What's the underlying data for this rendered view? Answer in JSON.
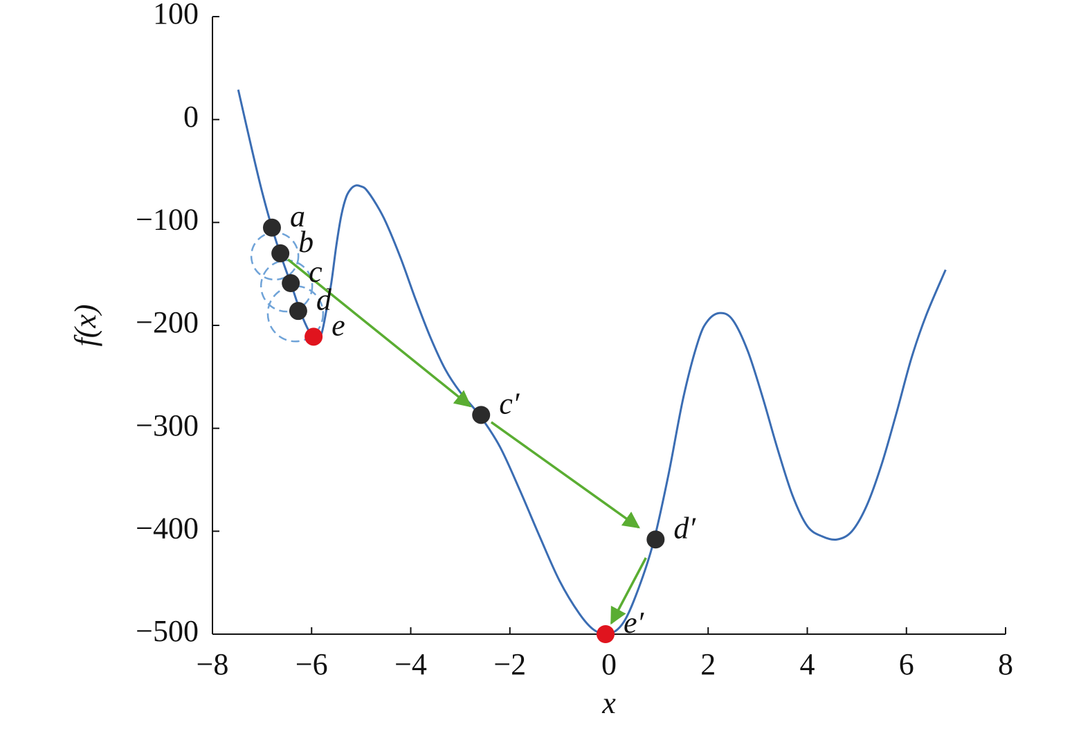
{
  "chart_data": {
    "type": "line",
    "x_label": "x",
    "y_label": "f(x)",
    "xlim": [
      -8,
      8
    ],
    "ylim": [
      -500,
      100
    ],
    "xticks": [
      {
        "value": -8,
        "label": "−8"
      },
      {
        "value": -6,
        "label": "−6"
      },
      {
        "value": -4,
        "label": "−4"
      },
      {
        "value": -2,
        "label": "−2"
      },
      0,
      2,
      4,
      6,
      8
    ],
    "yticks": [
      100,
      0,
      {
        "value": -100,
        "label": "−100"
      },
      {
        "value": -200,
        "label": "−200"
      },
      {
        "value": -300,
        "label": "−300"
      },
      {
        "value": -400,
        "label": "−400"
      },
      {
        "value": -500,
        "label": "−500"
      }
    ],
    "series": [
      {
        "color": "#3b6db3",
        "x": [
          -7.48,
          -7.2,
          -7.0,
          -6.8,
          -6.6,
          -6.4,
          -6.2,
          -6.0,
          -5.9,
          -5.8,
          -5.7,
          -5.6,
          -5.5,
          -5.4,
          -5.3,
          -5.2,
          -5.1,
          -5.0,
          -4.9,
          -4.7,
          -4.5,
          -4.2,
          -3.9,
          -3.6,
          -3.3,
          -3.0,
          -2.6,
          -2.2,
          -1.8,
          -1.4,
          -1.0,
          -0.6,
          -0.3,
          0.0,
          0.3,
          0.6,
          0.9,
          1.2,
          1.5,
          1.8,
          2.0,
          2.25,
          2.5,
          2.8,
          3.1,
          3.4,
          3.7,
          4.0,
          4.3,
          4.6,
          4.9,
          5.2,
          5.5,
          5.8,
          6.1,
          6.4,
          6.79
        ],
        "values": [
          29,
          -30,
          -70,
          -105,
          -135,
          -162,
          -190,
          -210,
          -213,
          -208,
          -185,
          -158,
          -122,
          -93,
          -75,
          -67,
          -64,
          -65,
          -68,
          -82,
          -100,
          -135,
          -175,
          -212,
          -243,
          -265,
          -288,
          -318,
          -360,
          -405,
          -448,
          -480,
          -496,
          -500,
          -488,
          -455,
          -410,
          -345,
          -270,
          -215,
          -195,
          -188,
          -195,
          -225,
          -270,
          -320,
          -365,
          -395,
          -405,
          -408,
          -400,
          -375,
          -335,
          -285,
          -232,
          -190,
          -146
        ]
      }
    ],
    "points": [
      {
        "label": "a",
        "x": -6.8,
        "y": -105,
        "color": "#2b2b2b"
      },
      {
        "label": "b",
        "x": -6.63,
        "y": -130,
        "color": "#2b2b2b"
      },
      {
        "label": "c",
        "x": -6.42,
        "y": -159,
        "color": "#2b2b2b"
      },
      {
        "label": "d",
        "x": -6.27,
        "y": -186,
        "color": "#2b2b2b"
      },
      {
        "label": "e",
        "x": -5.96,
        "y": -211,
        "color": "#e0141e"
      },
      {
        "label": "c′",
        "x": -2.58,
        "y": -287,
        "color": "#2b2b2b"
      },
      {
        "label": "d′",
        "x": 0.94,
        "y": -408,
        "color": "#2b2b2b"
      },
      {
        "label": "e′",
        "x": -0.07,
        "y": -500,
        "color": "#e0141e"
      }
    ]
  }
}
